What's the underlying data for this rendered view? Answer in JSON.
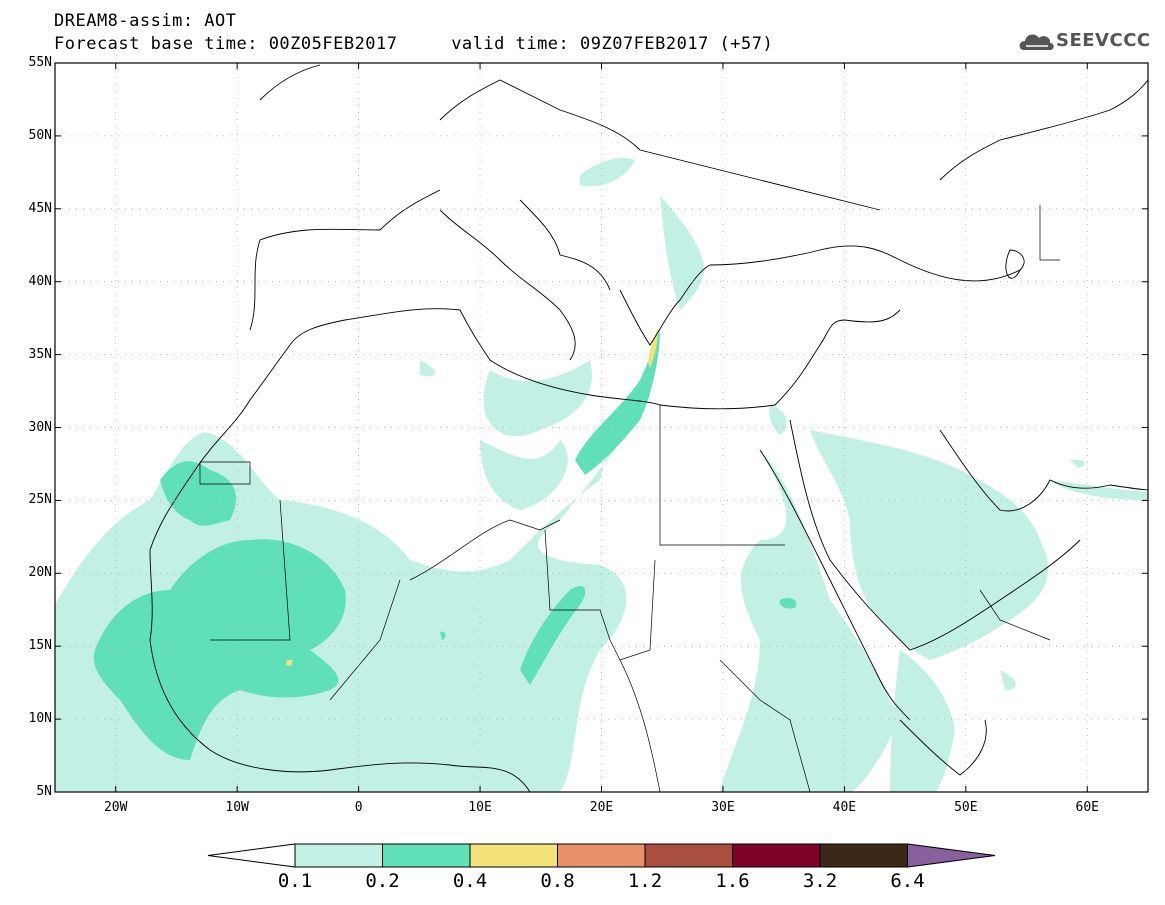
{
  "header": {
    "line1": "DREAM8-assim: AOT",
    "line2": "Forecast base time: 00Z05FEB2017     valid time: 09Z07FEB2017 (+57)"
  },
  "logo": {
    "text": "SEEVCCC",
    "icon": "cloud-logo-icon"
  },
  "map": {
    "lat_labels": [
      "55N",
      "50N",
      "45N",
      "40N",
      "35N",
      "30N",
      "25N",
      "20N",
      "15N",
      "10N",
      "5N"
    ],
    "lon_labels": [
      "20W",
      "10W",
      "0",
      "10E",
      "20E",
      "30E",
      "40E",
      "50E",
      "60E"
    ],
    "extent": {
      "lon": [
        -25,
        65
      ],
      "lat": [
        5,
        55
      ]
    }
  },
  "colorbar": {
    "labels": [
      "0.1",
      "0.2",
      "0.4",
      "0.8",
      "1.2",
      "1.6",
      "3.2",
      "6.4"
    ],
    "colors": [
      "#ffffff",
      "#c2f0e4",
      "#5fe0b8",
      "#f2e278",
      "#e89069",
      "#aa4e40",
      "#7e0328",
      "#3c2818",
      "#8a5f9e"
    ]
  },
  "colors": {
    "light": "#c2f0e4",
    "medium": "#5fe0b8",
    "yellow": "#f2e278",
    "land": "#ffffff",
    "line": "#000000"
  }
}
